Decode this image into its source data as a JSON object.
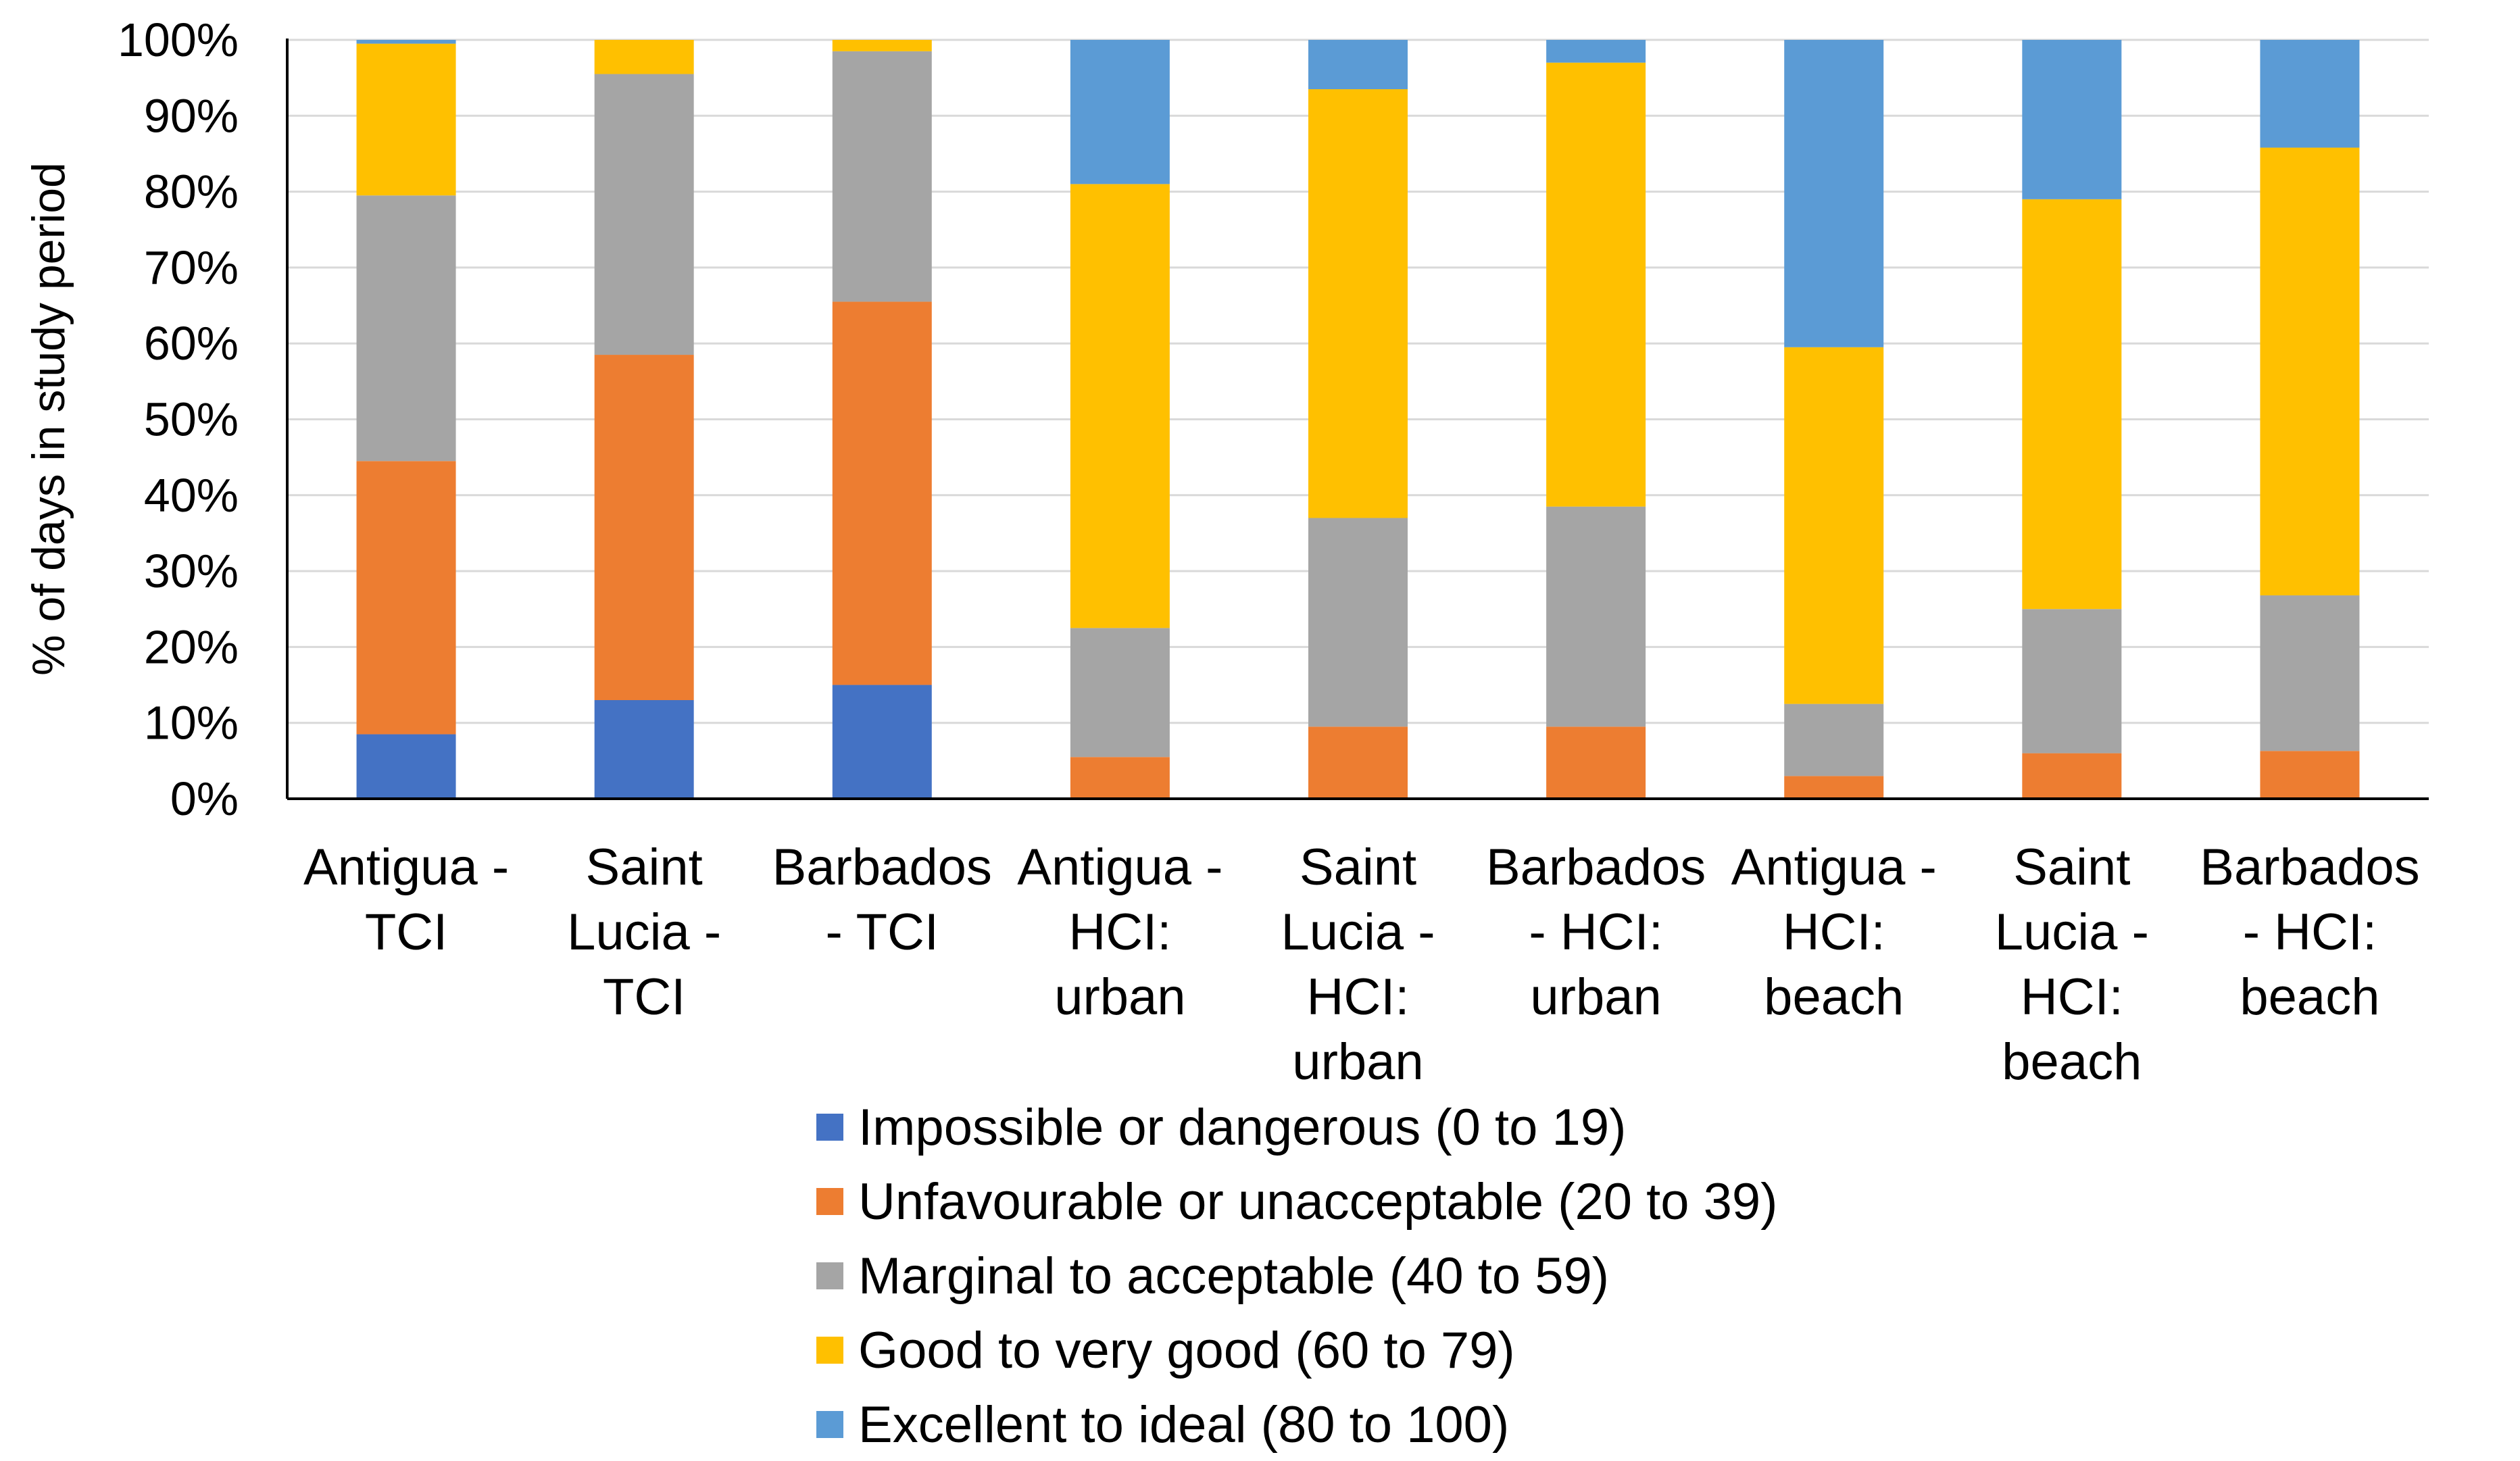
{
  "chart_data": {
    "type": "bar",
    "stacked": true,
    "title": "",
    "xlabel": "",
    "ylabel": "% of days in study period",
    "ylim": [
      0,
      100
    ],
    "y_ticks": [
      "0%",
      "10%",
      "20%",
      "30%",
      "40%",
      "50%",
      "60%",
      "70%",
      "80%",
      "90%",
      "100%"
    ],
    "grid": true,
    "legend_position": "bottom",
    "categories": [
      [
        "Antigua -",
        "TCI"
      ],
      [
        "Saint",
        "Lucia -",
        "TCI"
      ],
      [
        "Barbados",
        "- TCI"
      ],
      [
        "Antigua -",
        "HCI:",
        "urban"
      ],
      [
        "Saint",
        "Lucia -",
        "HCI:",
        "urban"
      ],
      [
        "Barbados",
        "- HCI:",
        "urban"
      ],
      [
        "Antigua -",
        "HCI:",
        "beach"
      ],
      [
        "Saint",
        "Lucia -",
        "HCI:",
        "beach"
      ],
      [
        "Barbados",
        "- HCI:",
        "beach"
      ]
    ],
    "series": [
      {
        "name": "Impossible or dangerous (0 to 19)",
        "color": "#4472C4",
        "values": [
          8.5,
          13,
          15,
          0,
          0,
          0,
          0,
          0,
          0
        ]
      },
      {
        "name": "Unfavourable or unacceptable (20 to 39)",
        "color": "#ED7D31",
        "values": [
          36,
          45.5,
          50.5,
          5.5,
          9.5,
          9.5,
          3,
          6,
          6.3
        ]
      },
      {
        "name": "Marginal to acceptable (40 to 59)",
        "color": "#A5A5A5",
        "values": [
          35,
          37,
          33,
          17,
          27.5,
          29,
          9.5,
          19,
          20.5
        ]
      },
      {
        "name": "Good to very good (60 to 79)",
        "color": "#FFC000",
        "values": [
          20,
          4.5,
          1.5,
          58.5,
          56.5,
          58.5,
          47,
          54,
          59
        ]
      },
      {
        "name": "Excellent to ideal (80 to 100)",
        "color": "#5B9BD5",
        "values": [
          0.5,
          0,
          0,
          19,
          6.5,
          3,
          40.5,
          21,
          14.2
        ]
      }
    ]
  }
}
